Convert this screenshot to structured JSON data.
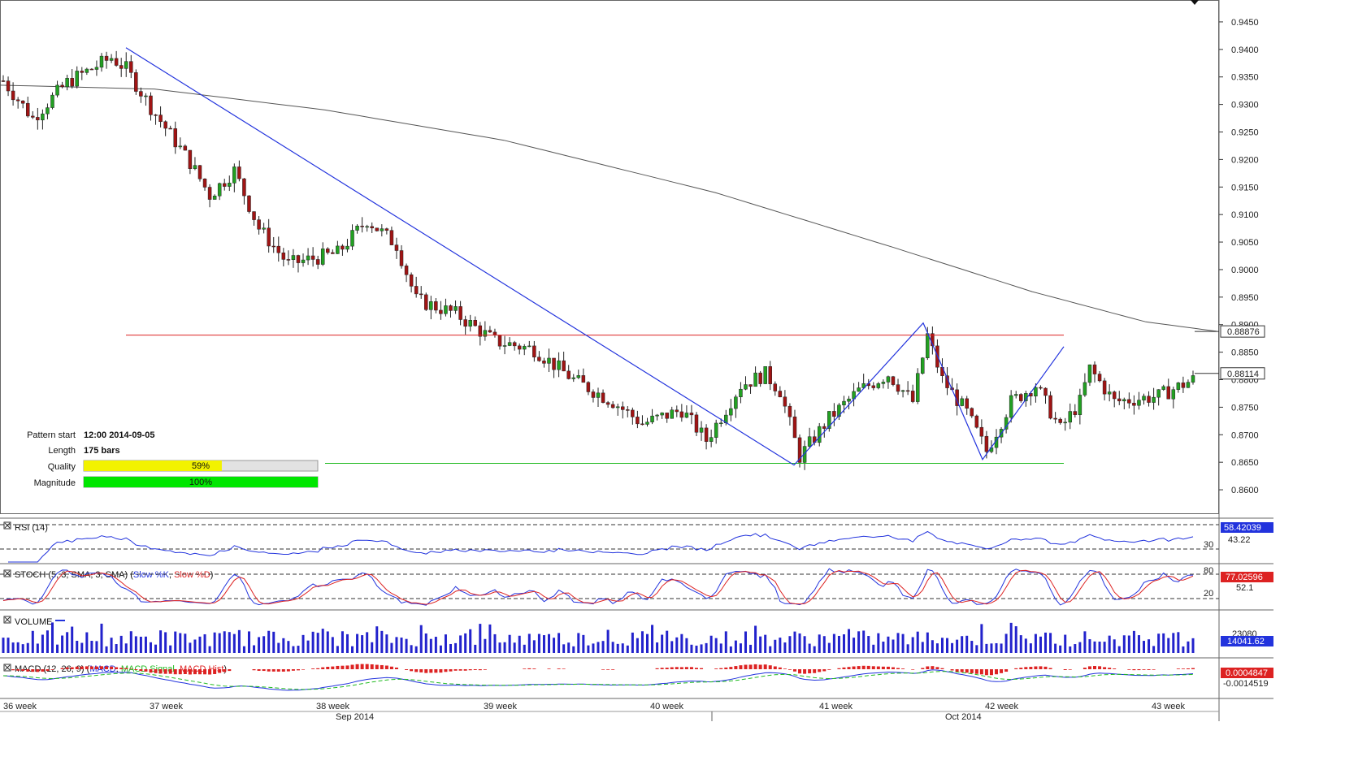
{
  "chart_data": {
    "type": "candlestick",
    "price_axis": {
      "ticks": [
        "0.9450",
        "0.9400",
        "0.9350",
        "0.9300",
        "0.9250",
        "0.9200",
        "0.9150",
        "0.9100",
        "0.9050",
        "0.9000",
        "0.8950",
        "0.8900",
        "0.8850",
        "0.8800",
        "0.8750",
        "0.8700",
        "0.8650",
        "0.8600"
      ],
      "ylim": [
        0.8575,
        0.9475
      ]
    },
    "current_price": "0.88114",
    "ma_last_value": "0.88876",
    "pattern_info": {
      "rows": [
        {
          "label": "Pattern start",
          "value": "12:00 2014-09-05"
        },
        {
          "label": "Length",
          "value": "175 bars"
        }
      ],
      "bars": [
        {
          "label": "Quality",
          "percent_text": "59%",
          "fraction": 0.59,
          "color": "#f2f200"
        },
        {
          "label": "Magnitude",
          "percent_text": "100%",
          "fraction": 1.0,
          "color": "#00e600"
        }
      ]
    },
    "levels": {
      "resistance": 0.8881,
      "support": 0.8648,
      "resistance_color": "#dd2222",
      "support_color": "#22bb22",
      "pattern_line_color": "#2233dd"
    },
    "x_labels": [
      "36 week",
      "37 week",
      "38 week",
      "39 week",
      "40 week",
      "41 week",
      "42 week",
      "43 week"
    ],
    "month_labels": [
      "Sep 2014",
      "Oct 2014"
    ],
    "indicators": {
      "rsi": {
        "title": "RSI (14)",
        "value": "58.42039",
        "level_label": "30",
        "extra": "43.22"
      },
      "stoch": {
        "title": "STOCH (5, 3, SMA, 3, SMA)",
        "legend": [
          {
            "name": "Slow %K",
            "color": "#2233dd"
          },
          {
            "name": "Slow %D",
            "color": "#dd2222"
          }
        ],
        "value": "77.02596",
        "upper_level": "80",
        "lower_level": "20",
        "extra": "52.1"
      },
      "volume": {
        "title": "VOLUME",
        "value": "14041.62",
        "level_label": "23080"
      },
      "macd": {
        "title": "MACD (12, 26, 9)",
        "legend": [
          {
            "name": "MACD",
            "color": "#2233dd"
          },
          {
            "name": "MACD Signal",
            "color": "#22bb22"
          },
          {
            "name": "MACD Hist",
            "color": "#dd2222"
          }
        ],
        "value": "0.0004847",
        "lower_label": "-0.0014519"
      }
    },
    "colors": {
      "bull": "#22a022",
      "bear": "#a01414",
      "ma": "#555555",
      "text": "#111111"
    }
  }
}
